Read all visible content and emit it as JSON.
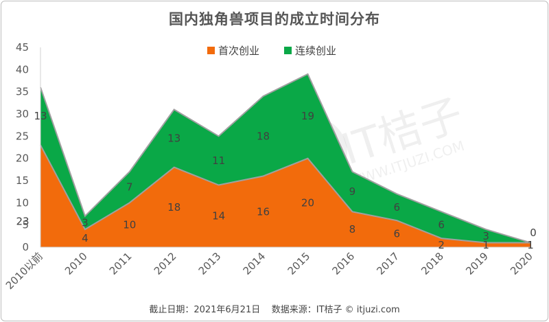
{
  "title": "国内独角兽项目的成立时间分布",
  "footer": {
    "cutoff": "截止日期：2021年6月21日",
    "source": "数据来源：IT桔子 © itjuzi.com"
  },
  "watermark": {
    "brand": "IT桔子",
    "site": "WWW.ITJUZI.COM"
  },
  "colors": {
    "first": "#f26b0c",
    "serial": "#0aa847",
    "outline": "#a0a0a0"
  },
  "chart_data": {
    "type": "area",
    "stacked": true,
    "title": "国内独角兽项目的成立时间分布",
    "categories": [
      "2010以前",
      "2010",
      "2011",
      "2012",
      "2013",
      "2014",
      "2015",
      "2016",
      "2017",
      "2018",
      "2019",
      "2020"
    ],
    "series": [
      {
        "name": "首次创业",
        "values": [
          23,
          4,
          10,
          18,
          14,
          16,
          20,
          8,
          6,
          2,
          1,
          1
        ]
      },
      {
        "name": "连续创业",
        "values": [
          13,
          3,
          7,
          13,
          11,
          18,
          19,
          9,
          6,
          6,
          3,
          0
        ]
      }
    ],
    "ylim": [
      0,
      45
    ],
    "yticks": [
      0,
      5,
      10,
      15,
      20,
      25,
      30,
      35,
      40,
      45
    ],
    "legend": "top-center",
    "grid": false
  }
}
